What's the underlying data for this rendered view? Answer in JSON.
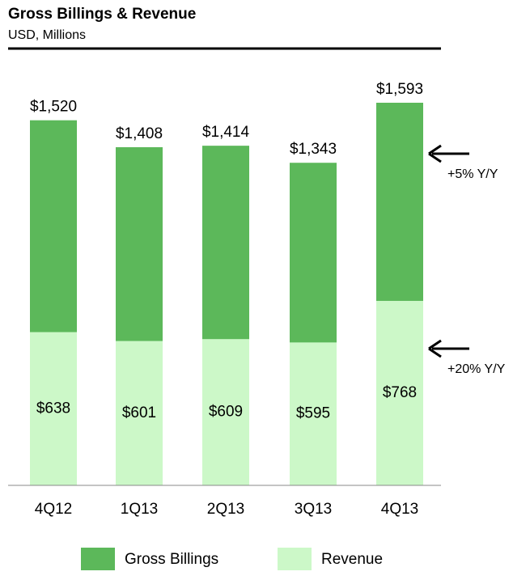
{
  "chart_data": {
    "type": "bar",
    "title": "Gross Billings & Revenue",
    "subtitle": "USD, Millions",
    "categories": [
      "4Q12",
      "1Q13",
      "2Q13",
      "3Q13",
      "4Q13"
    ],
    "series": [
      {
        "name": "Gross Billings",
        "color": "#5cb85a",
        "values": [
          1520,
          1408,
          1414,
          1343,
          1593
        ],
        "value_labels": [
          "$1,520",
          "$1,408",
          "$1,414",
          "$1,343",
          "$1,593"
        ]
      },
      {
        "name": "Revenue",
        "color": "#ccf8c8",
        "values": [
          638,
          601,
          609,
          595,
          768
        ],
        "value_labels": [
          "$638",
          "$601",
          "$609",
          "$595",
          "$768"
        ]
      }
    ],
    "annotations": [
      "+5% Y/Y",
      "+20% Y/Y"
    ]
  }
}
